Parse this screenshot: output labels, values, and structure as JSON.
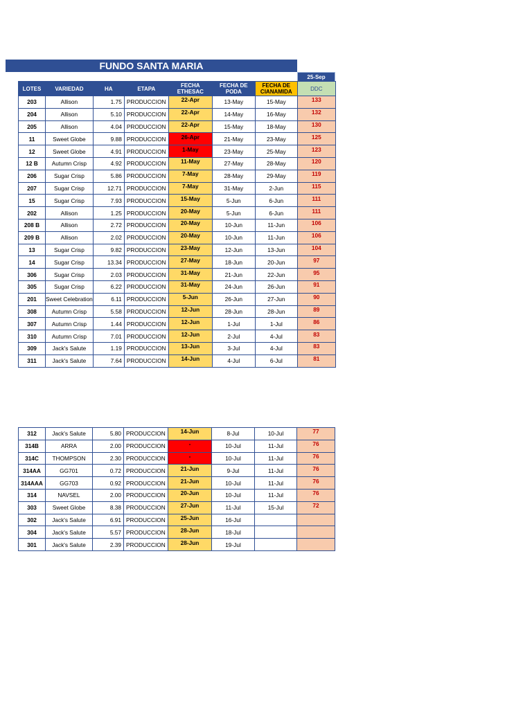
{
  "title": "FUNDO SANTA MARIA",
  "date": "25-Sep",
  "headers": {
    "lotes": "LOTES",
    "variedad": "VARIEDAD",
    "ha": "HA",
    "etapa": "ETAPA",
    "ethesac": "FECHA ETHESAC",
    "poda": "FECHA DE PODA",
    "cianamida": "FECHA DE CIANAMIDA",
    "ddc": "DDC"
  },
  "colors": {
    "header_blue": "#2f4f94",
    "ethesac_yellow": "#ffd966",
    "alert_red": "#ff0000",
    "ddc_salmon": "#f8cbad",
    "ddc_text": "#c00000"
  },
  "table1": [
    {
      "lote": "203",
      "variedad": "Allison",
      "ha": "1.75",
      "etapa": "PRODUCCION",
      "ethesac": "22-Apr",
      "red": false,
      "poda": "13-May",
      "cianamida": "15-May",
      "ddc": "133"
    },
    {
      "lote": "204",
      "variedad": "Allison",
      "ha": "5.10",
      "etapa": "PRODUCCION",
      "ethesac": "22-Apr",
      "red": false,
      "poda": "14-May",
      "cianamida": "16-May",
      "ddc": "132"
    },
    {
      "lote": "205",
      "variedad": "Allison",
      "ha": "4.04",
      "etapa": "PRODUCCION",
      "ethesac": "22-Apr",
      "red": false,
      "poda": "15-May",
      "cianamida": "18-May",
      "ddc": "130"
    },
    {
      "lote": "11",
      "variedad": "Sweet Globe",
      "ha": "9.88",
      "etapa": "PRODUCCION",
      "ethesac": "26-Apr",
      "red": true,
      "poda": "21-May",
      "cianamida": "23-May",
      "ddc": "125"
    },
    {
      "lote": "12",
      "variedad": "Sweet Globe",
      "ha": "4.91",
      "etapa": "PRODUCCION",
      "ethesac": "1-May",
      "red": true,
      "poda": "23-May",
      "cianamida": "25-May",
      "ddc": "123"
    },
    {
      "lote": "12 B",
      "variedad": "Autumn Crisp",
      "ha": "4.92",
      "etapa": "PRODUCCION",
      "ethesac": "11-May",
      "red": false,
      "poda": "27-May",
      "cianamida": "28-May",
      "ddc": "120"
    },
    {
      "lote": "206",
      "variedad": "Sugar Crisp",
      "ha": "5.86",
      "etapa": "PRODUCCION",
      "ethesac": "7-May",
      "red": false,
      "poda": "28-May",
      "cianamida": "29-May",
      "ddc": "119"
    },
    {
      "lote": "207",
      "variedad": "Sugar Crisp",
      "ha": "12.71",
      "etapa": "PRODUCCION",
      "ethesac": "7-May",
      "red": false,
      "poda": "31-May",
      "cianamida": "2-Jun",
      "ddc": "115"
    },
    {
      "lote": "15",
      "variedad": "Sugar Crisp",
      "ha": "7.93",
      "etapa": "PRODUCCION",
      "ethesac": "15-May",
      "red": false,
      "poda": "5-Jun",
      "cianamida": "6-Jun",
      "ddc": "111"
    },
    {
      "lote": "202",
      "variedad": "Allison",
      "ha": "1.25",
      "etapa": "PRODUCCION",
      "ethesac": "20-May",
      "red": false,
      "poda": "5-Jun",
      "cianamida": "6-Jun",
      "ddc": "111"
    },
    {
      "lote": "208 B",
      "variedad": "Allison",
      "ha": "2.72",
      "etapa": "PRODUCCION",
      "ethesac": "20-May",
      "red": false,
      "poda": "10-Jun",
      "cianamida": "11-Jun",
      "ddc": "106"
    },
    {
      "lote": "209 B",
      "variedad": "Allison",
      "ha": "2.02",
      "etapa": "PRODUCCION",
      "ethesac": "20-May",
      "red": false,
      "poda": "10-Jun",
      "cianamida": "11-Jun",
      "ddc": "106"
    },
    {
      "lote": "13",
      "variedad": "Sugar Crisp",
      "ha": "9.82",
      "etapa": "PRODUCCION",
      "ethesac": "23-May",
      "red": false,
      "poda": "12-Jun",
      "cianamida": "13-Jun",
      "ddc": "104"
    },
    {
      "lote": "14",
      "variedad": "Sugar Crisp",
      "ha": "13.34",
      "etapa": "PRODUCCION",
      "ethesac": "27-May",
      "red": false,
      "poda": "18-Jun",
      "cianamida": "20-Jun",
      "ddc": "97"
    },
    {
      "lote": "306",
      "variedad": "Sugar Crisp",
      "ha": "2.03",
      "etapa": "PRODUCCION",
      "ethesac": "31-May",
      "red": false,
      "poda": "21-Jun",
      "cianamida": "22-Jun",
      "ddc": "95"
    },
    {
      "lote": "305",
      "variedad": "Sugar Crisp",
      "ha": "6.22",
      "etapa": "PRODUCCION",
      "ethesac": "31-May",
      "red": false,
      "poda": "24-Jun",
      "cianamida": "26-Jun",
      "ddc": "91"
    },
    {
      "lote": "201",
      "variedad": "Sweet Celebration",
      "ha": "6.11",
      "etapa": "PRODUCCION",
      "ethesac": "5-Jun",
      "red": false,
      "poda": "26-Jun",
      "cianamida": "27-Jun",
      "ddc": "90"
    },
    {
      "lote": "308",
      "variedad": "Autumn Crisp",
      "ha": "5.58",
      "etapa": "PRODUCCION",
      "ethesac": "12-Jun",
      "red": false,
      "poda": "28-Jun",
      "cianamida": "28-Jun",
      "ddc": "89"
    },
    {
      "lote": "307",
      "variedad": "Autumn Crisp",
      "ha": "1.44",
      "etapa": "PRODUCCION",
      "ethesac": "12-Jun",
      "red": false,
      "poda": "1-Jul",
      "cianamida": "1-Jul",
      "ddc": "86"
    },
    {
      "lote": "310",
      "variedad": "Autumn Crisp",
      "ha": "7.01",
      "etapa": "PRODUCCION",
      "ethesac": "12-Jun",
      "red": false,
      "poda": "2-Jul",
      "cianamida": "4-Jul",
      "ddc": "83"
    },
    {
      "lote": "309",
      "variedad": "Jack's Salute",
      "ha": "1.19",
      "etapa": "PRODUCCION",
      "ethesac": "13-Jun",
      "red": false,
      "poda": "3-Jul",
      "cianamida": "4-Jul",
      "ddc": "83"
    },
    {
      "lote": "311",
      "variedad": "Jack's Salute",
      "ha": "7.64",
      "etapa": "PRODUCCION",
      "ethesac": "14-Jun",
      "red": false,
      "poda": "4-Jul",
      "cianamida": "6-Jul",
      "ddc": "81"
    }
  ],
  "table2": [
    {
      "lote": "312",
      "variedad": "Jack's Salute",
      "ha": "5.80",
      "etapa": "PRODUCCION",
      "ethesac": "14-Jun",
      "red": false,
      "poda": "8-Jul",
      "cianamida": "10-Jul",
      "ddc": "77"
    },
    {
      "lote": "314B",
      "variedad": "ARRA",
      "ha": "2.00",
      "etapa": "PRODUCCION",
      "ethesac": "-",
      "red": true,
      "poda": "10-Jul",
      "cianamida": "11-Jul",
      "ddc": "76"
    },
    {
      "lote": "314C",
      "variedad": "THOMPSON",
      "ha": "2.30",
      "etapa": "PRODUCCION",
      "ethesac": "-",
      "red": true,
      "poda": "10-Jul",
      "cianamida": "11-Jul",
      "ddc": "76"
    },
    {
      "lote": "314AA",
      "variedad": "GG701",
      "ha": "0.72",
      "etapa": "PRODUCCION",
      "ethesac": "21-Jun",
      "red": false,
      "poda": "9-Jul",
      "cianamida": "11-Jul",
      "ddc": "76"
    },
    {
      "lote": "314AAA",
      "variedad": "GG703",
      "ha": "0.92",
      "etapa": "PRODUCCION",
      "ethesac": "21-Jun",
      "red": false,
      "poda": "10-Jul",
      "cianamida": "11-Jul",
      "ddc": "76"
    },
    {
      "lote": "314",
      "variedad": "NAVSEL",
      "ha": "2.00",
      "etapa": "PRODUCCION",
      "ethesac": "20-Jun",
      "red": false,
      "poda": "10-Jul",
      "cianamida": "11-Jul",
      "ddc": "76"
    },
    {
      "lote": "303",
      "variedad": "Sweet Globe",
      "ha": "8.38",
      "etapa": "PRODUCCION",
      "ethesac": "27-Jun",
      "red": false,
      "poda": "11-Jul",
      "cianamida": "15-Jul",
      "ddc": "72"
    },
    {
      "lote": "302",
      "variedad": "Jack's Salute",
      "ha": "6.91",
      "etapa": "PRODUCCION",
      "ethesac": "25-Jun",
      "red": false,
      "poda": "16-Jul",
      "cianamida": "",
      "ddc": ""
    },
    {
      "lote": "304",
      "variedad": "Jack's Salute",
      "ha": "5.57",
      "etapa": "PRODUCCION",
      "ethesac": "28-Jun",
      "red": false,
      "poda": "18-Jul",
      "cianamida": "",
      "ddc": ""
    },
    {
      "lote": "301",
      "variedad": "Jack's Salute",
      "ha": "2.39",
      "etapa": "PRODUCCION",
      "ethesac": "28-Jun",
      "red": false,
      "poda": "19-Jul",
      "cianamida": "",
      "ddc": ""
    }
  ]
}
